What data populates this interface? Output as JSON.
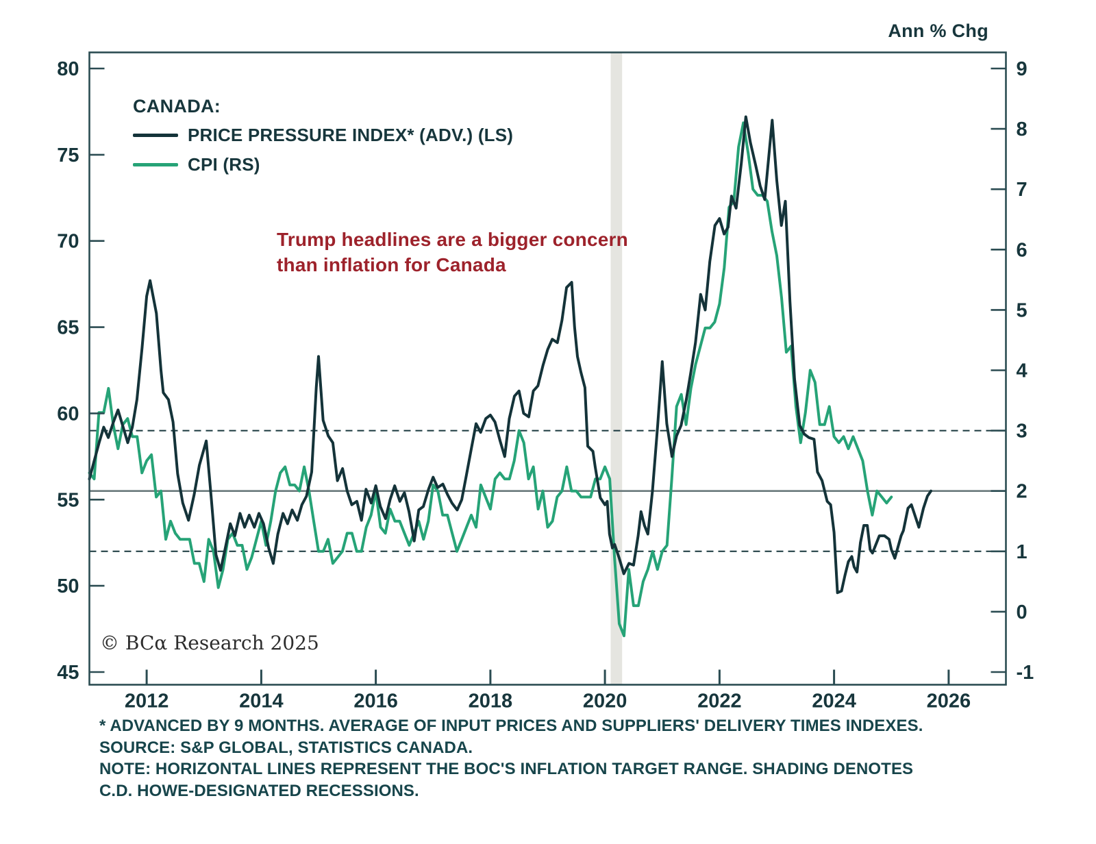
{
  "header": {
    "units_label": "Ann % Chg"
  },
  "legend": {
    "title": "CANADA:",
    "items": [
      {
        "label": "PRICE PRESSURE INDEX* (ADV.) (LS)",
        "color": "#143339"
      },
      {
        "label": "CPI (RS)",
        "color": "#26a377"
      }
    ]
  },
  "annotation": {
    "line1": "Trump headlines are a bigger concern",
    "line2": "than inflation for Canada",
    "color": "#9d222b"
  },
  "copyright": "© BCα Research 2025",
  "footnotes": [
    "* ADVANCED BY 9 MONTHS. AVERAGE OF INPUT PRICES AND SUPPLIERS' DELIVERY TIMES INDEXES.",
    "SOURCE: S&P GLOBAL, STATISTICS CANADA.",
    "NOTE: HORIZONTAL LINES REPRESENT THE BOC'S INFLATION TARGET RANGE. SHADING DENOTES",
    "C.D. HOWE-DESIGNATED RECESSIONS."
  ],
  "colors": {
    "ppi_line": "#143339",
    "cpi_line": "#26a377",
    "axis_frame": "#2b4c52",
    "tick_text": "#17363c",
    "solid_target_line": "#69797b",
    "dashed_target_line": "#17363c",
    "recession_shading": "#e5e5e0",
    "annotation_red": "#9d222b"
  },
  "chart_data": {
    "type": "line",
    "title": "CANADA: PRICE PRESSURE INDEX (ADV.) VS CPI",
    "x_range": [
      2011,
      2027
    ],
    "x_ticks": [
      2012,
      2014,
      2016,
      2018,
      2020,
      2022,
      2024,
      2026
    ],
    "left_axis": {
      "name": "PRICE PRESSURE INDEX (LS)",
      "range": [
        45,
        80
      ],
      "ticks": [
        80,
        75,
        70,
        65,
        60,
        55,
        50,
        45
      ]
    },
    "right_axis": {
      "name": "CPI Ann % Chg (RS)",
      "range": [
        -1,
        9
      ],
      "ticks": [
        9,
        8,
        7,
        6,
        5,
        4,
        3,
        2,
        1,
        0,
        -1
      ]
    },
    "reference_lines": {
      "solid_right_value": 2,
      "dashed_right_values": [
        3,
        1
      ],
      "meaning": "BoC inflation target range"
    },
    "recession_shading_x": [
      {
        "from": 2020.1,
        "to": 2020.3
      }
    ],
    "legend_position": "top-left",
    "grid": false,
    "series": [
      {
        "name": "PRICE PRESSURE INDEX* (ADV.) (LS)",
        "axis": "left",
        "color": "#143339",
        "points": [
          [
            2011.0,
            56.2
          ],
          [
            2011.08,
            57.2
          ],
          [
            2011.17,
            58.3
          ],
          [
            2011.25,
            59.2
          ],
          [
            2011.33,
            58.6
          ],
          [
            2011.42,
            59.5
          ],
          [
            2011.5,
            60.2
          ],
          [
            2011.58,
            59.3
          ],
          [
            2011.67,
            58.3
          ],
          [
            2011.75,
            59.2
          ],
          [
            2011.83,
            60.8
          ],
          [
            2011.92,
            63.8
          ],
          [
            2012.0,
            66.8
          ],
          [
            2012.06,
            67.7
          ],
          [
            2012.17,
            65.8
          ],
          [
            2012.25,
            62.5
          ],
          [
            2012.29,
            61.2
          ],
          [
            2012.38,
            60.8
          ],
          [
            2012.46,
            59.5
          ],
          [
            2012.54,
            56.5
          ],
          [
            2012.63,
            54.8
          ],
          [
            2012.73,
            53.8
          ],
          [
            2012.83,
            55.3
          ],
          [
            2012.92,
            57.0
          ],
          [
            2013.04,
            58.4
          ],
          [
            2013.13,
            55.0
          ],
          [
            2013.21,
            51.8
          ],
          [
            2013.29,
            50.9
          ],
          [
            2013.38,
            52.3
          ],
          [
            2013.46,
            53.6
          ],
          [
            2013.54,
            52.9
          ],
          [
            2013.63,
            54.2
          ],
          [
            2013.71,
            53.4
          ],
          [
            2013.79,
            54.1
          ],
          [
            2013.88,
            53.4
          ],
          [
            2013.96,
            54.2
          ],
          [
            2014.04,
            53.6
          ],
          [
            2014.13,
            52.2
          ],
          [
            2014.21,
            51.3
          ],
          [
            2014.29,
            53.0
          ],
          [
            2014.38,
            54.2
          ],
          [
            2014.46,
            53.6
          ],
          [
            2014.54,
            54.4
          ],
          [
            2014.63,
            53.8
          ],
          [
            2014.71,
            54.7
          ],
          [
            2014.79,
            55.2
          ],
          [
            2014.88,
            56.6
          ],
          [
            2014.96,
            61.5
          ],
          [
            2015.0,
            63.3
          ],
          [
            2015.08,
            59.6
          ],
          [
            2015.17,
            58.7
          ],
          [
            2015.25,
            58.3
          ],
          [
            2015.33,
            56.1
          ],
          [
            2015.42,
            56.8
          ],
          [
            2015.5,
            55.5
          ],
          [
            2015.58,
            54.7
          ],
          [
            2015.67,
            54.9
          ],
          [
            2015.75,
            53.8
          ],
          [
            2015.83,
            55.6
          ],
          [
            2015.92,
            54.8
          ],
          [
            2016.0,
            55.8
          ],
          [
            2016.08,
            54.6
          ],
          [
            2016.17,
            53.9
          ],
          [
            2016.25,
            55.0
          ],
          [
            2016.33,
            55.8
          ],
          [
            2016.42,
            54.9
          ],
          [
            2016.5,
            55.4
          ],
          [
            2016.58,
            54.3
          ],
          [
            2016.67,
            52.6
          ],
          [
            2016.75,
            54.4
          ],
          [
            2016.83,
            54.6
          ],
          [
            2016.92,
            55.6
          ],
          [
            2017.0,
            56.3
          ],
          [
            2017.08,
            55.7
          ],
          [
            2017.17,
            55.9
          ],
          [
            2017.25,
            55.3
          ],
          [
            2017.33,
            54.8
          ],
          [
            2017.42,
            54.4
          ],
          [
            2017.5,
            55.0
          ],
          [
            2017.58,
            56.4
          ],
          [
            2017.67,
            58.0
          ],
          [
            2017.75,
            59.4
          ],
          [
            2017.83,
            58.9
          ],
          [
            2017.92,
            59.7
          ],
          [
            2018.0,
            59.9
          ],
          [
            2018.08,
            59.5
          ],
          [
            2018.17,
            58.4
          ],
          [
            2018.25,
            57.5
          ],
          [
            2018.33,
            59.7
          ],
          [
            2018.42,
            61.0
          ],
          [
            2018.5,
            61.3
          ],
          [
            2018.58,
            60.0
          ],
          [
            2018.67,
            59.8
          ],
          [
            2018.75,
            61.3
          ],
          [
            2018.83,
            61.6
          ],
          [
            2018.92,
            62.8
          ],
          [
            2019.0,
            63.7
          ],
          [
            2019.08,
            64.3
          ],
          [
            2019.17,
            64.1
          ],
          [
            2019.25,
            65.4
          ],
          [
            2019.33,
            67.3
          ],
          [
            2019.42,
            67.6
          ],
          [
            2019.47,
            65.0
          ],
          [
            2019.52,
            63.3
          ],
          [
            2019.58,
            62.4
          ],
          [
            2019.65,
            61.5
          ],
          [
            2019.7,
            58.1
          ],
          [
            2019.79,
            57.8
          ],
          [
            2019.83,
            56.9
          ],
          [
            2019.92,
            55.1
          ],
          [
            2020.0,
            54.7
          ],
          [
            2020.04,
            54.9
          ],
          [
            2020.08,
            53.0
          ],
          [
            2020.13,
            52.2
          ],
          [
            2020.17,
            52.4
          ],
          [
            2020.25,
            51.6
          ],
          [
            2020.33,
            50.7
          ],
          [
            2020.42,
            51.3
          ],
          [
            2020.5,
            51.2
          ],
          [
            2020.58,
            52.9
          ],
          [
            2020.63,
            54.3
          ],
          [
            2020.69,
            53.5
          ],
          [
            2020.75,
            53.0
          ],
          [
            2020.83,
            55.5
          ],
          [
            2020.92,
            59.3
          ],
          [
            2021.0,
            63.0
          ],
          [
            2021.08,
            59.4
          ],
          [
            2021.17,
            57.5
          ],
          [
            2021.25,
            58.7
          ],
          [
            2021.33,
            59.3
          ],
          [
            2021.42,
            60.8
          ],
          [
            2021.5,
            62.4
          ],
          [
            2021.58,
            64.1
          ],
          [
            2021.67,
            66.9
          ],
          [
            2021.75,
            66.0
          ],
          [
            2021.83,
            68.8
          ],
          [
            2021.92,
            70.9
          ],
          [
            2022.0,
            71.3
          ],
          [
            2022.08,
            70.4
          ],
          [
            2022.15,
            70.8
          ],
          [
            2022.21,
            72.6
          ],
          [
            2022.29,
            71.9
          ],
          [
            2022.38,
            74.5
          ],
          [
            2022.46,
            77.2
          ],
          [
            2022.54,
            75.7
          ],
          [
            2022.63,
            74.4
          ],
          [
            2022.71,
            73.2
          ],
          [
            2022.79,
            72.4
          ],
          [
            2022.92,
            77.0
          ],
          [
            2023.0,
            73.5
          ],
          [
            2023.08,
            70.9
          ],
          [
            2023.15,
            72.3
          ],
          [
            2023.23,
            66.5
          ],
          [
            2023.31,
            62.0
          ],
          [
            2023.4,
            59.3
          ],
          [
            2023.48,
            58.8
          ],
          [
            2023.56,
            58.6
          ],
          [
            2023.65,
            58.5
          ],
          [
            2023.71,
            56.6
          ],
          [
            2023.79,
            56.1
          ],
          [
            2023.88,
            54.9
          ],
          [
            2023.94,
            54.7
          ],
          [
            2024.0,
            53.1
          ],
          [
            2024.06,
            49.6
          ],
          [
            2024.13,
            49.7
          ],
          [
            2024.19,
            50.6
          ],
          [
            2024.25,
            51.4
          ],
          [
            2024.31,
            51.7
          ],
          [
            2024.35,
            51.1
          ],
          [
            2024.4,
            50.8
          ],
          [
            2024.46,
            52.5
          ],
          [
            2024.52,
            53.5
          ],
          [
            2024.58,
            53.5
          ],
          [
            2024.63,
            52.1
          ],
          [
            2024.67,
            51.9
          ],
          [
            2024.73,
            52.4
          ],
          [
            2024.79,
            52.9
          ],
          [
            2024.88,
            52.9
          ],
          [
            2024.96,
            52.7
          ],
          [
            2025.0,
            52.1
          ],
          [
            2025.06,
            51.6
          ],
          [
            2025.17,
            52.9
          ],
          [
            2025.21,
            53.2
          ],
          [
            2025.29,
            54.5
          ],
          [
            2025.35,
            54.7
          ],
          [
            2025.4,
            54.2
          ],
          [
            2025.48,
            53.4
          ],
          [
            2025.56,
            54.5
          ],
          [
            2025.63,
            55.2
          ],
          [
            2025.69,
            55.5
          ]
        ]
      },
      {
        "name": "CPI (RS)",
        "axis": "right",
        "color": "#26a377",
        "start": 2011.0,
        "step_years": 0.08333,
        "values": [
          2.3,
          2.2,
          3.3,
          3.3,
          3.7,
          3.1,
          2.7,
          3.1,
          3.2,
          2.9,
          2.9,
          2.3,
          2.5,
          2.6,
          1.9,
          2.0,
          1.2,
          1.5,
          1.3,
          1.2,
          1.2,
          1.2,
          0.8,
          0.8,
          0.5,
          1.2,
          1.0,
          0.4,
          0.7,
          1.2,
          1.3,
          1.1,
          1.1,
          0.7,
          0.9,
          1.2,
          1.5,
          1.1,
          1.5,
          2.0,
          2.3,
          2.4,
          2.1,
          2.1,
          2.0,
          2.4,
          2.0,
          1.5,
          1.0,
          1.0,
          1.2,
          0.8,
          0.9,
          1.0,
          1.3,
          1.3,
          1.0,
          1.0,
          1.4,
          1.6,
          2.0,
          1.4,
          1.3,
          1.7,
          1.5,
          1.5,
          1.3,
          1.1,
          1.3,
          1.5,
          1.2,
          1.5,
          2.1,
          2.0,
          1.6,
          1.6,
          1.3,
          1.0,
          1.2,
          1.4,
          1.6,
          1.4,
          2.1,
          1.9,
          1.7,
          2.2,
          2.3,
          2.2,
          2.2,
          2.5,
          3.0,
          2.8,
          2.2,
          2.4,
          1.7,
          2.0,
          1.4,
          1.5,
          1.9,
          2.0,
          2.4,
          2.0,
          2.0,
          1.9,
          1.9,
          1.9,
          2.2,
          2.2,
          2.4,
          2.2,
          0.9,
          -0.2,
          -0.4,
          0.7,
          0.1,
          0.1,
          0.5,
          0.7,
          1.0,
          0.7,
          1.0,
          1.1,
          2.2,
          3.4,
          3.6,
          3.1,
          3.7,
          4.1,
          4.4,
          4.7,
          4.7,
          4.8,
          5.1,
          5.7,
          6.7,
          6.8,
          7.7,
          8.1,
          7.6,
          7.0,
          6.9,
          6.9,
          6.8,
          6.3,
          5.9,
          5.2,
          4.3,
          4.4,
          3.4,
          2.8,
          3.3,
          4.0,
          3.8,
          3.1,
          3.1,
          3.4,
          2.9,
          2.8,
          2.9,
          2.7,
          2.9,
          2.7,
          2.5,
          2.0,
          1.6,
          2.0,
          1.9,
          1.8,
          1.9
        ]
      }
    ]
  }
}
